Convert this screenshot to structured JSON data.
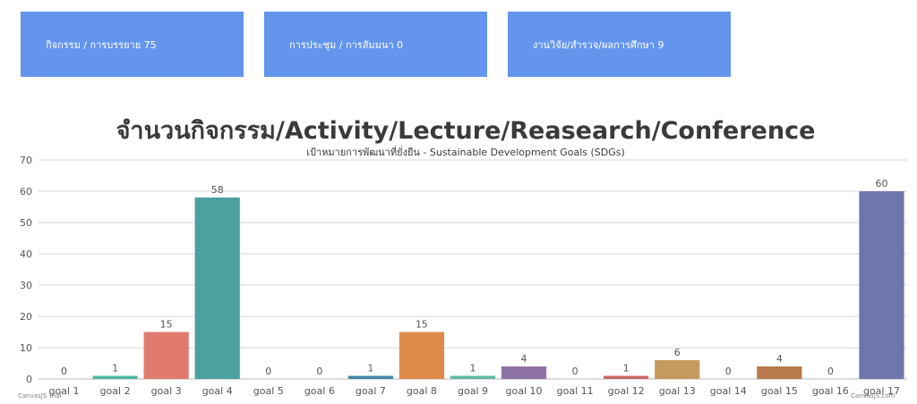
{
  "stats": [
    {
      "label": "กิจกรรม / การบรรยาย 75"
    },
    {
      "label": "การประชุม / การสัมมนา 0"
    },
    {
      "label": "งานวิจัย/สำรวจ/ผลการศึกษา 9"
    }
  ],
  "credits": {
    "left": "CanvasJS Trial",
    "right": "CanvasJS.com"
  },
  "chart_data": {
    "type": "bar",
    "title": "จำนวนกิจกรรม/Activity/Lecture/Reasearch/Conference",
    "subtitle": "เป้าหมายการพัฒนาที่ยั่งยืน - Sustainable Development Goals (SDGs)",
    "categories": [
      "goal 1",
      "goal 2",
      "goal 3",
      "goal 4",
      "goal 5",
      "goal 6",
      "goal 7",
      "goal 8",
      "goal 9",
      "goal 10",
      "goal 11",
      "goal 12",
      "goal 13",
      "goal 14",
      "goal 15",
      "goal 16",
      "goal 17"
    ],
    "values": [
      0,
      1,
      15,
      58,
      0,
      0,
      1,
      15,
      1,
      4,
      0,
      1,
      6,
      0,
      4,
      0,
      60
    ],
    "colors": [
      "#4f81bc",
      "#4fb99f",
      "#e07a6e",
      "#4aa19f",
      "#5b8cc8",
      "#5d9fc6",
      "#4584a6",
      "#e08a4a",
      "#5fb8a0",
      "#8e72a4",
      "#4d7fb8",
      "#cd6868",
      "#c59a5e",
      "#6a97b7",
      "#b87a4d",
      "#8499bb",
      "#6d77ad"
    ],
    "ylim": [
      0,
      70
    ],
    "yticks": [
      0,
      10,
      20,
      30,
      40,
      50,
      60,
      70
    ],
    "grid": true,
    "xlabel": "",
    "ylabel": ""
  }
}
